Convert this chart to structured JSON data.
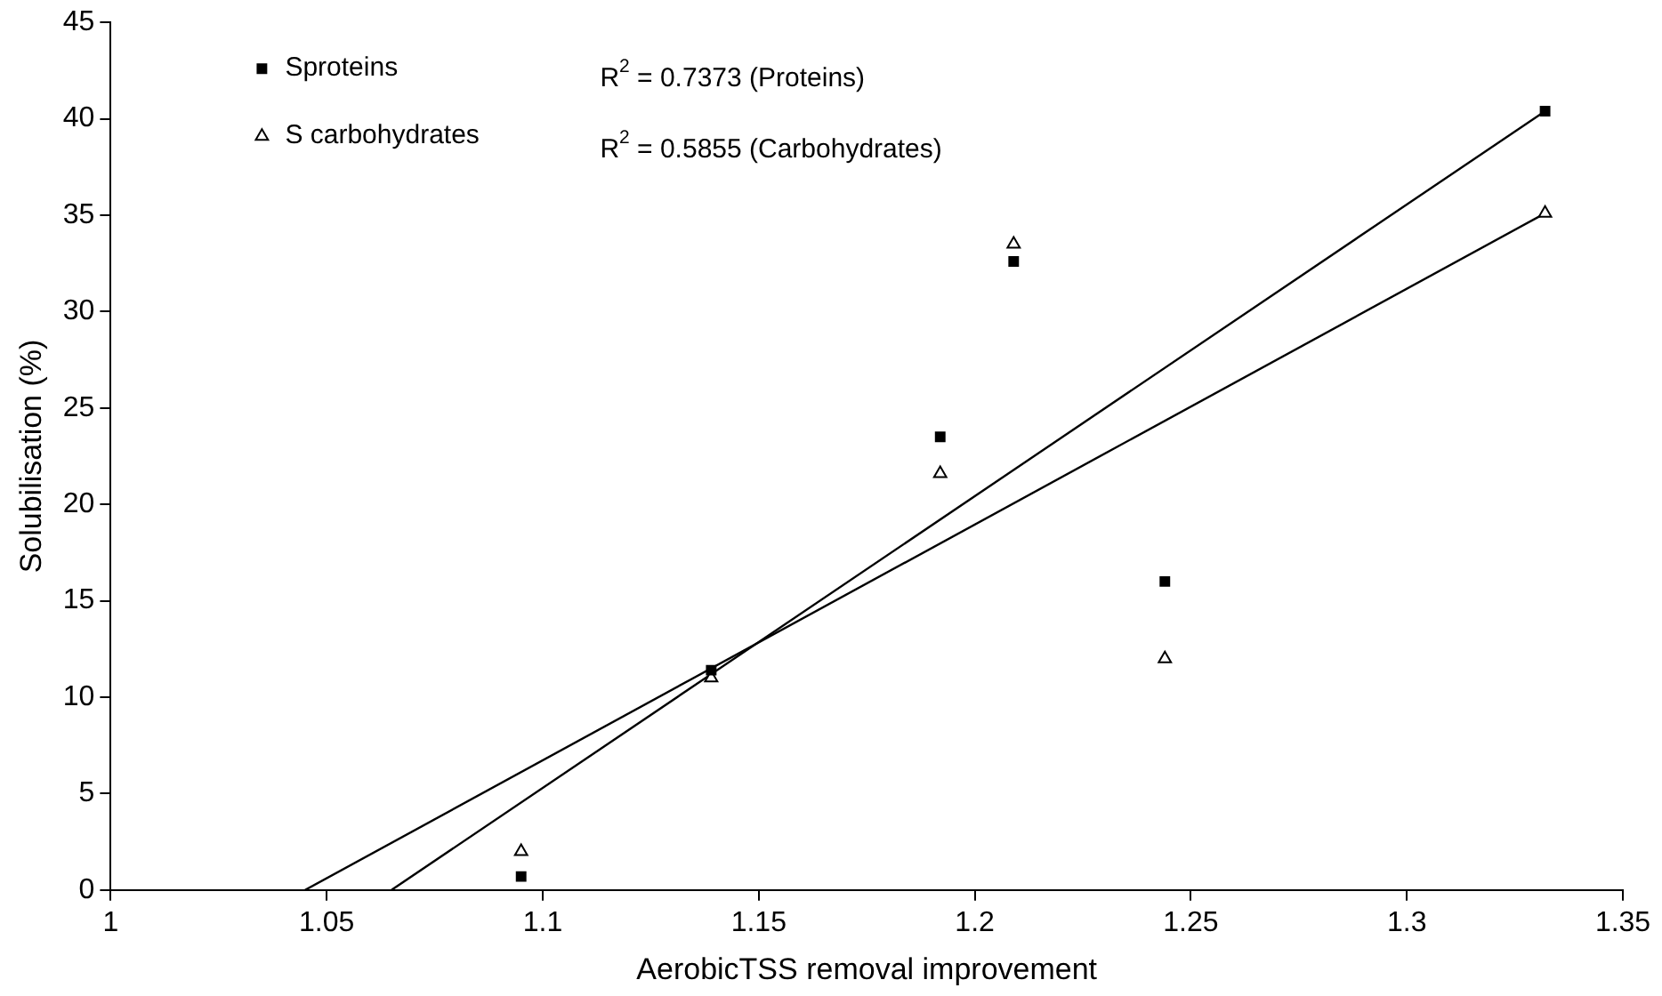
{
  "chart_data": {
    "type": "scatter",
    "xlabel": "AerobicTSS removal improvement",
    "ylabel": "Solubilisation (%)",
    "xlim": [
      1,
      1.35
    ],
    "xticks": [
      1,
      1.05,
      1.1,
      1.15,
      1.2,
      1.25,
      1.3,
      1.35
    ],
    "ylim": [
      0,
      45
    ],
    "yticks": [
      0,
      5,
      10,
      15,
      20,
      25,
      30,
      35,
      40,
      45
    ],
    "grid": false,
    "legend": "top left",
    "annotations": [
      "R$^{2}$ = 0.7373 (Proteins)",
      "R$^{2}$ = 0.5855 (Carbohydrates)"
    ],
    "series": [
      {
        "name": "Sproteins",
        "marker": "square",
        "color": "#000000",
        "x": [
          1.095,
          1.139,
          1.192,
          1.209,
          1.244,
          1.332
        ],
        "values": [
          0.7,
          11.4,
          23.5,
          32.6,
          16,
          40.4
        ]
      },
      {
        "name": "S carbohydrates",
        "marker": "triangle",
        "color": "#000000",
        "x": [
          1.095,
          1.139,
          1.192,
          1.209,
          1.244,
          1.332
        ],
        "values": [
          2,
          11,
          21.6,
          33.5,
          12,
          35.1
        ]
      },
      {
        "type": "line",
        "marker": "none",
        "color": "#000000",
        "x": [
          1.065,
          1.332
        ],
        "values": [
          0,
          40.4
        ]
      },
      {
        "type": "line",
        "marker": "none",
        "color": "#000000",
        "x": [
          1.045,
          1.332
        ],
        "values": [
          0,
          35.1
        ]
      }
    ]
  }
}
